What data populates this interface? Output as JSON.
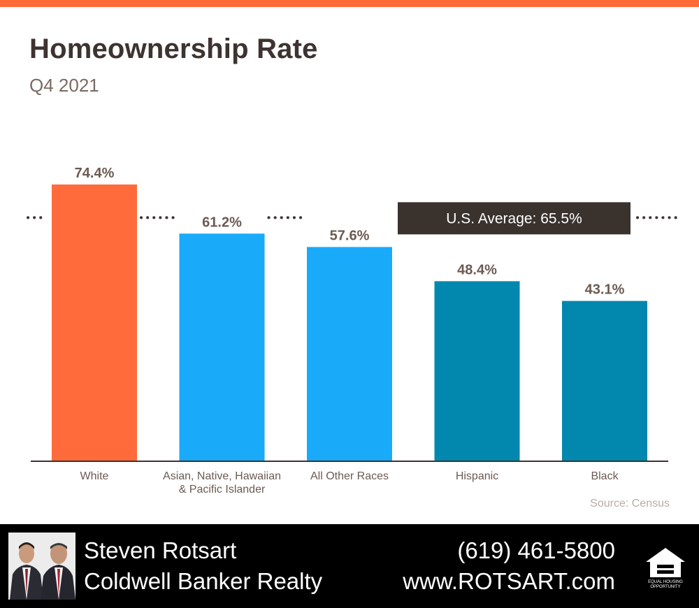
{
  "header": {
    "title": "Homeownership Rate",
    "subtitle": "Q4 2021"
  },
  "chart_data": {
    "type": "bar",
    "title": "Homeownership Rate",
    "subtitle": "Q4 2021",
    "categories": [
      "White",
      "Asian, Native, Hawaiian\n& Pacific Islander",
      "All Other Races",
      "Hispanic",
      "Black"
    ],
    "values": [
      74.4,
      61.2,
      57.6,
      48.4,
      43.1
    ],
    "value_labels": [
      "74.4%",
      "61.2%",
      "57.6%",
      "48.4%",
      "43.1%"
    ],
    "bar_colors": [
      "#FF6B3B",
      "#1AAAFA",
      "#1AAAFA",
      "#0288AE",
      "#0288AE"
    ],
    "ylim": [
      0,
      74.4
    ],
    "grid": false,
    "reference_line": {
      "value": 65.5,
      "label": "U.S. Average: 65.5%",
      "style": "dotted",
      "color": "#3d3330"
    },
    "label_color": "#6b5a52",
    "axis_color": "#3d3330"
  },
  "source": "Source: Census",
  "footer": {
    "name": "Steven Rotsart",
    "company": "Coldwell Banker Realty",
    "phone": "(619) 461-5800",
    "website": "www.ROTSART.com",
    "logo_text": [
      "EQUAL HOUSING",
      "OPPORTUNITY"
    ]
  }
}
